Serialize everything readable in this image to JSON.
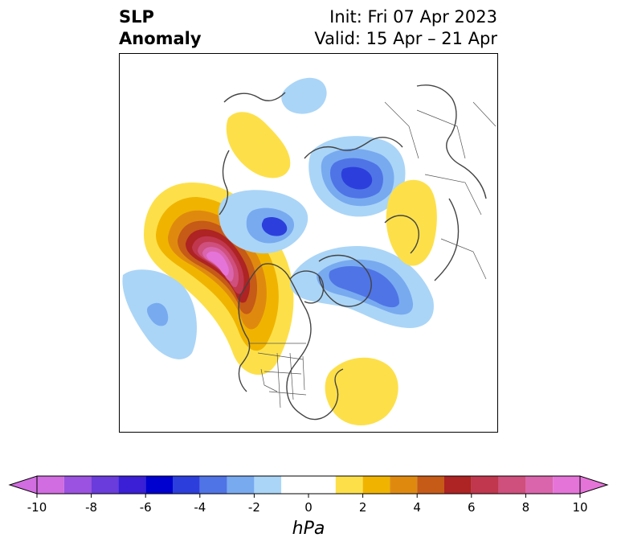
{
  "title": {
    "left_line1": "SLP",
    "left_line2": "Anomaly",
    "init": "Init: Fri 07 Apr 2023",
    "valid": "Valid: 15 Apr – 21 Apr"
  },
  "colorbar": {
    "unit": "hPa",
    "ticks": [
      "-10",
      "-8",
      "-6",
      "-4",
      "-2",
      "0",
      "2",
      "4",
      "6",
      "8",
      "10"
    ],
    "extend": "both",
    "levels": [
      {
        "from": -10,
        "to": -9,
        "color": "#d16de0"
      },
      {
        "from": -9,
        "to": -8,
        "color": "#9c52e0"
      },
      {
        "from": -8,
        "to": -7,
        "color": "#6a3cdb"
      },
      {
        "from": -7,
        "to": -6,
        "color": "#3a1fd6"
      },
      {
        "from": -6,
        "to": -5,
        "color": "#0000cf"
      },
      {
        "from": -5,
        "to": -4,
        "color": "#2c3fdc"
      },
      {
        "from": -4,
        "to": -3,
        "color": "#4f74e6"
      },
      {
        "from": -3,
        "to": -2,
        "color": "#78aaf0"
      },
      {
        "from": -2,
        "to": -1,
        "color": "#aad5f7"
      },
      {
        "from": -1,
        "to": 1,
        "color": "#ffffff"
      },
      {
        "from": 1,
        "to": 2,
        "color": "#fde049"
      },
      {
        "from": 2,
        "to": 3,
        "color": "#f0b400"
      },
      {
        "from": 3,
        "to": 4,
        "color": "#df8a0f"
      },
      {
        "from": 4,
        "to": 5,
        "color": "#c65a17"
      },
      {
        "from": 5,
        "to": 6,
        "color": "#ae2323"
      },
      {
        "from": 6,
        "to": 7,
        "color": "#c0374e"
      },
      {
        "from": 7,
        "to": 8,
        "color": "#cf4f7d"
      },
      {
        "from": 8,
        "to": 9,
        "color": "#da65ad"
      },
      {
        "from": 9,
        "to": 10,
        "color": "#e574d9"
      }
    ],
    "under_color": "#d16de0",
    "over_color": "#e574d9"
  },
  "map": {
    "projection": "polar-stereographic",
    "region": "Northern Hemisphere / North America",
    "features": [
      "coastlines",
      "country-borders",
      "us-state-borders"
    ],
    "anomalies": [
      {
        "name": "northeast-pacific-high",
        "peak_hpa": 10,
        "sign": "positive"
      },
      {
        "name": "central-pacific-low",
        "peak_hpa": -3,
        "sign": "negative"
      },
      {
        "name": "canada-greenland-low",
        "peak_hpa": -4,
        "sign": "negative"
      },
      {
        "name": "hudson-bay-low",
        "peak_hpa": -5,
        "sign": "negative"
      },
      {
        "name": "western-atlantic-high",
        "peak_hpa": 1,
        "sign": "positive"
      },
      {
        "name": "siberia-arctic-low",
        "peak_hpa": -5,
        "sign": "negative"
      },
      {
        "name": "northern-europe-high",
        "peak_hpa": 1,
        "sign": "positive"
      },
      {
        "name": "east-asia-high",
        "peak_hpa": 1,
        "sign": "positive"
      }
    ]
  }
}
